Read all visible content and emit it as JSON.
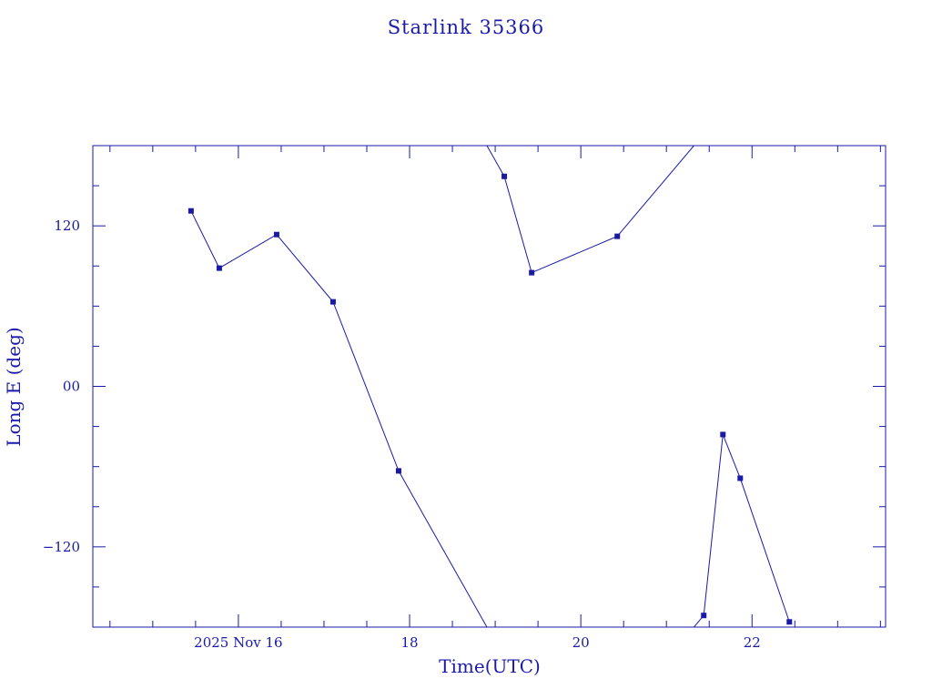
{
  "chart_data": {
    "type": "line",
    "title": "Starlink 35366",
    "xlabel": "Time(UTC)",
    "ylabel": "Long E (deg)",
    "xlim": [
      14.3,
      23.56
    ],
    "ylim": [
      -180,
      180
    ],
    "x_ticks": [
      {
        "value": 16,
        "label": "2025 Nov 16"
      },
      {
        "value": 18,
        "label": "18"
      },
      {
        "value": 20,
        "label": "20"
      },
      {
        "value": 22,
        "label": "22"
      }
    ],
    "y_ticks": [
      {
        "value": 120,
        "label": "120"
      },
      {
        "value": 0,
        "label": "00"
      },
      {
        "value": -120,
        "label": "−120"
      }
    ],
    "grid": false,
    "wrap_longitude": true,
    "series": [
      {
        "name": "Starlink 35366",
        "x": [
          15.447,
          15.777,
          16.447,
          17.106,
          17.872,
          19.106,
          19.426,
          20.426,
          21.436,
          21.66,
          21.862,
          22.436
        ],
        "y": [
          131.2,
          88.4,
          113.5,
          63.2,
          -63.2,
          157.0,
          85.0,
          112.2,
          -171.3,
          -36.0,
          -68.7,
          -176.1
        ]
      }
    ],
    "color": "#1a1aa6"
  }
}
